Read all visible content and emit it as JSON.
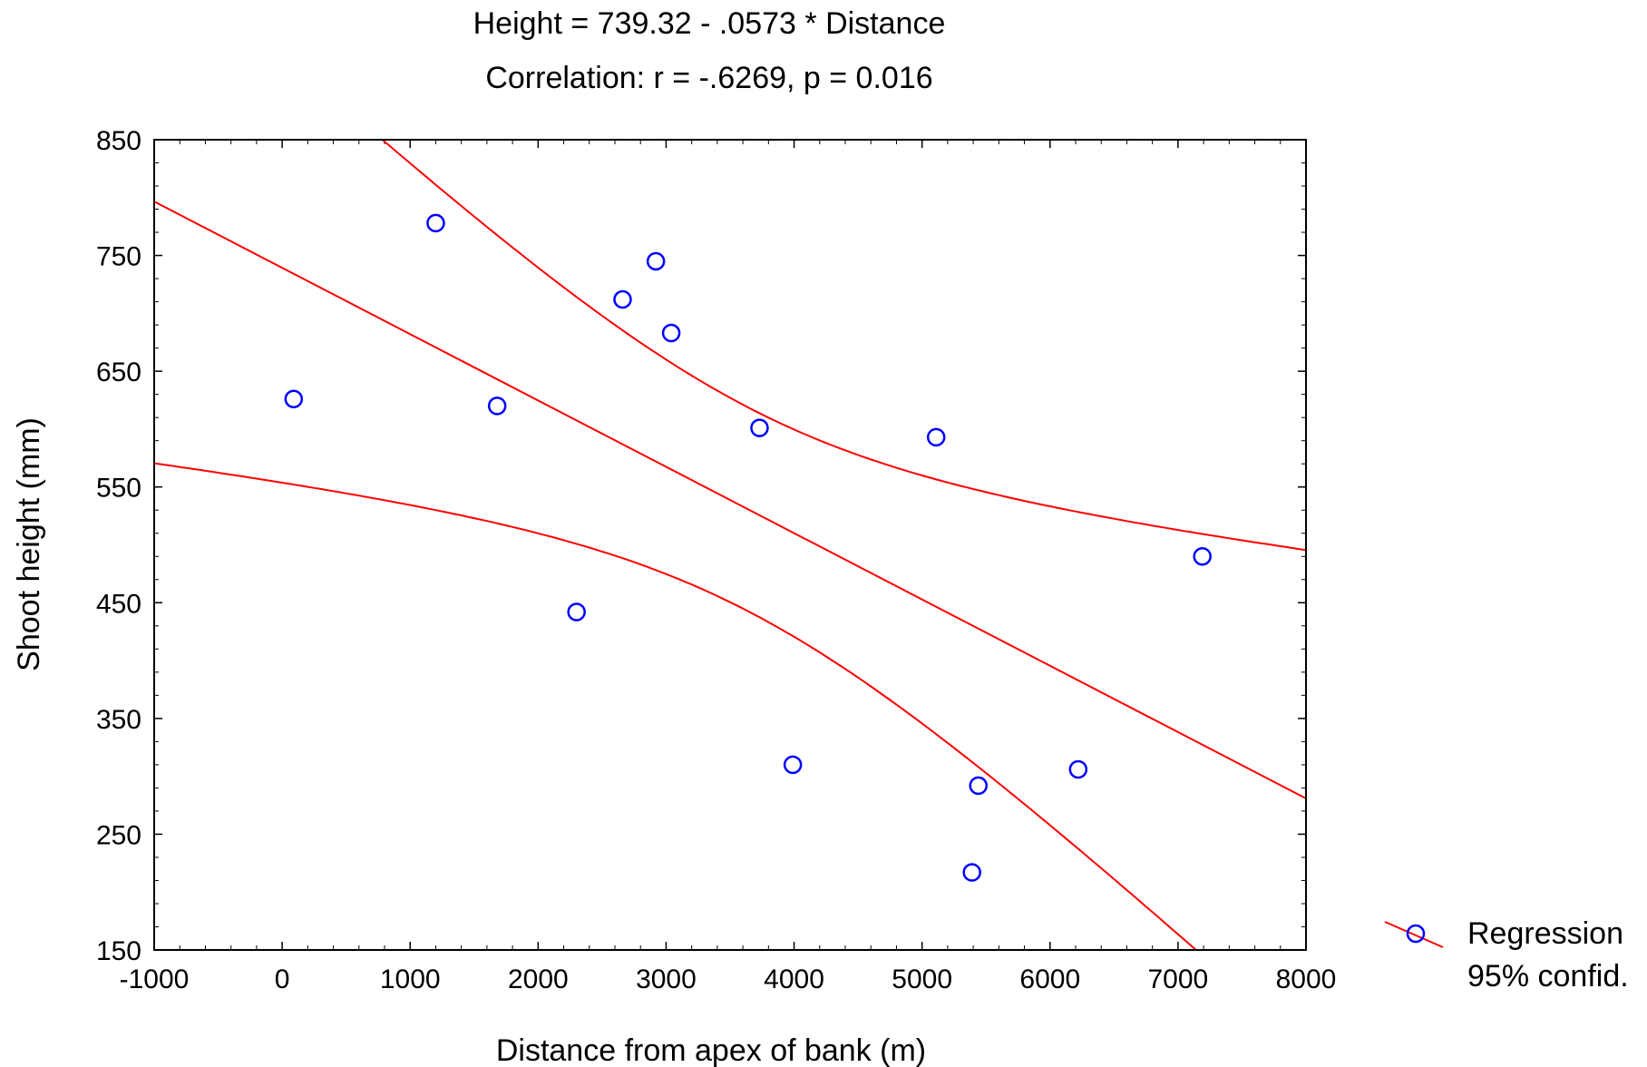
{
  "chart_data": {
    "type": "scatter",
    "title": "Height = 739.32 - .0573 * Distance",
    "subtitle": "Correlation: r = -.6269, p = 0.016",
    "xlabel": "Distance from apex of bank (m)",
    "ylabel": "Shoot height (mm)",
    "xlim": [
      -1000,
      8000
    ],
    "ylim": [
      150,
      850
    ],
    "xticks": [
      "-1000",
      "0",
      "1000",
      "2000",
      "3000",
      "4000",
      "5000",
      "6000",
      "7000",
      "8000"
    ],
    "yticks": [
      "150",
      "250",
      "350",
      "450",
      "550",
      "650",
      "750",
      "850"
    ],
    "grid": false,
    "legend_position": "bottom-right",
    "legend": [
      "Regression",
      "95% confid."
    ],
    "points": [
      {
        "x": 90,
        "y": 626
      },
      {
        "x": 1200,
        "y": 778
      },
      {
        "x": 1680,
        "y": 620
      },
      {
        "x": 2300,
        "y": 442
      },
      {
        "x": 2660,
        "y": 712
      },
      {
        "x": 2920,
        "y": 745
      },
      {
        "x": 3040,
        "y": 683
      },
      {
        "x": 3730,
        "y": 601
      },
      {
        "x": 3990,
        "y": 310
      },
      {
        "x": 5110,
        "y": 593
      },
      {
        "x": 5390,
        "y": 217
      },
      {
        "x": 5440,
        "y": 292
      },
      {
        "x": 6220,
        "y": 306
      },
      {
        "x": 7190,
        "y": 490
      }
    ],
    "regression": {
      "intercept": 739.32,
      "slope": -0.0573
    },
    "colors": {
      "points": "#0000ff",
      "lines": "#ff0000",
      "axes": "#000000"
    }
  }
}
